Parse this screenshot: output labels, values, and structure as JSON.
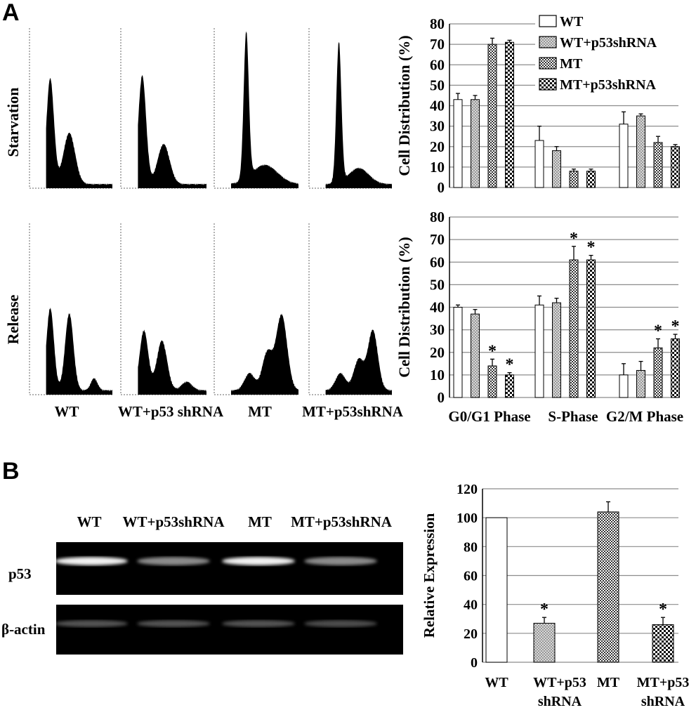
{
  "panel_labels": {
    "a": "A",
    "b": "B"
  },
  "histograms": {
    "row_labels": [
      "Starvation",
      "Release"
    ],
    "column_labels": [
      "WT",
      "WT+p53 shRNA",
      "MT",
      "MT+p53shRNA"
    ]
  },
  "gel": {
    "lane_labels": [
      "WT",
      "WT+p53shRNA",
      "MT",
      "MT+p53shRNA"
    ],
    "band_labels": [
      "p53",
      "β-actin"
    ]
  },
  "chart_data": [
    {
      "type": "bar",
      "ylabel": "Cell Distribution (%)",
      "ylim": [
        0,
        80
      ],
      "yticks": [
        0,
        10,
        20,
        30,
        40,
        50,
        60,
        70,
        80
      ],
      "grid": true,
      "legend_position": "top-right",
      "categories": [
        "G0/G1 Phase",
        "S-Phase",
        "G2/M Phase"
      ],
      "series": [
        {
          "name": "WT",
          "values": [
            43,
            23,
            31
          ],
          "errors": [
            3,
            7,
            6
          ],
          "sig": [
            false,
            false,
            false
          ]
        },
        {
          "name": "WT+p53shRNA",
          "values": [
            43,
            18,
            35
          ],
          "errors": [
            2,
            2,
            1
          ],
          "sig": [
            false,
            false,
            false
          ]
        },
        {
          "name": "MT",
          "values": [
            70,
            8,
            22
          ],
          "errors": [
            3,
            1,
            3
          ],
          "sig": [
            false,
            false,
            false
          ]
        },
        {
          "name": "MT+p53shRNA",
          "values": [
            71,
            8,
            20
          ],
          "errors": [
            1,
            1,
            1
          ],
          "sig": [
            false,
            false,
            false
          ]
        }
      ]
    },
    {
      "type": "bar",
      "ylabel": "Cell Distribution (%)",
      "ylim": [
        0,
        80
      ],
      "yticks": [
        0,
        10,
        20,
        30,
        40,
        50,
        60,
        70,
        80
      ],
      "grid": true,
      "categories": [
        "G0/G1 Phase",
        "S-Phase",
        "G2/M Phase"
      ],
      "series": [
        {
          "name": "WT",
          "values": [
            40,
            41,
            10
          ],
          "errors": [
            1,
            4,
            5
          ],
          "sig": [
            false,
            false,
            false
          ]
        },
        {
          "name": "WT+p53shRNA",
          "values": [
            37,
            42,
            12
          ],
          "errors": [
            2,
            2,
            4
          ],
          "sig": [
            false,
            false,
            false
          ]
        },
        {
          "name": "MT",
          "values": [
            14,
            61,
            22
          ],
          "errors": [
            3,
            6,
            4
          ],
          "sig": [
            true,
            true,
            true
          ]
        },
        {
          "name": "MT+p53shRNA",
          "values": [
            10,
            61,
            26
          ],
          "errors": [
            1,
            2,
            2
          ],
          "sig": [
            true,
            true,
            true
          ]
        }
      ]
    },
    {
      "type": "bar",
      "ylabel": "Relative Expression",
      "ylim": [
        0,
        120
      ],
      "yticks": [
        0,
        20,
        40,
        60,
        80,
        100,
        120
      ],
      "grid": true,
      "categories": [
        "WT",
        "WT+p53 shRNA",
        "MT",
        "MT+p53 shRNA"
      ],
      "values": [
        100,
        27,
        104,
        26
      ],
      "errors": [
        0,
        4,
        7,
        5
      ],
      "sig": [
        false,
        true,
        false,
        true
      ]
    }
  ]
}
